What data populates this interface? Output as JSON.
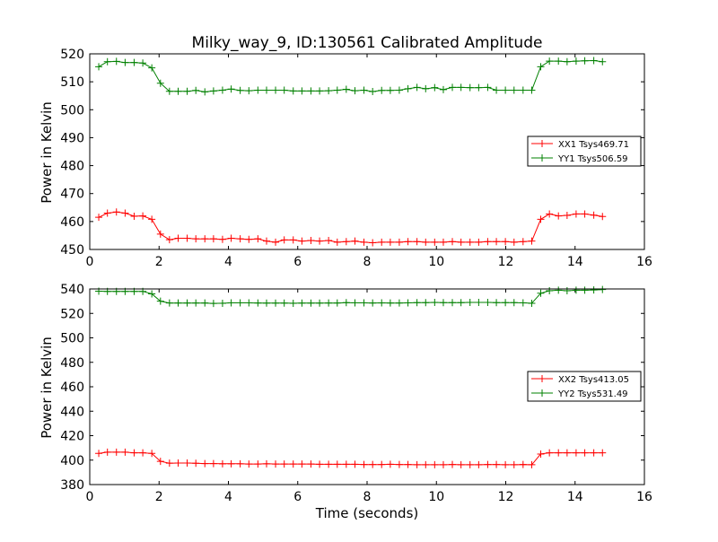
{
  "chart_data": [
    {
      "type": "line",
      "title": "Milky_way_9, ID:130561 Calibrated Amplitude",
      "xlabel": "",
      "ylabel": "Power in Kelvin",
      "xlim": [
        0,
        16
      ],
      "ylim": [
        450,
        520
      ],
      "xticks": [
        "0",
        "2",
        "4",
        "6",
        "8",
        "10",
        "12",
        "14",
        "16"
      ],
      "yticks": [
        "450",
        "460",
        "470",
        "480",
        "490",
        "500",
        "510",
        "520"
      ],
      "grid": false,
      "legend_position": "center-right",
      "x": [
        0.26,
        0.51,
        0.77,
        1.02,
        1.28,
        1.53,
        1.79,
        2.04,
        2.3,
        2.55,
        2.81,
        3.06,
        3.32,
        3.57,
        3.83,
        4.08,
        4.34,
        4.59,
        4.85,
        5.1,
        5.36,
        5.61,
        5.87,
        6.12,
        6.38,
        6.63,
        6.89,
        7.14,
        7.4,
        7.65,
        7.91,
        8.16,
        8.42,
        8.67,
        8.93,
        9.18,
        9.44,
        9.69,
        9.95,
        10.2,
        10.46,
        10.71,
        10.97,
        11.22,
        11.48,
        11.73,
        11.99,
        12.24,
        12.5,
        12.75,
        13.01,
        13.26,
        13.52,
        13.77,
        14.03,
        14.28,
        14.54,
        14.79
      ],
      "series": [
        {
          "name": "XX1 Tsys469.71",
          "color": "#ff0000",
          "values": [
            461.5,
            463.0,
            463.4,
            463.0,
            461.9,
            462.0,
            460.8,
            455.5,
            453.5,
            454.0,
            454.0,
            453.8,
            453.8,
            453.8,
            453.6,
            454.0,
            453.8,
            453.6,
            453.8,
            453.0,
            452.6,
            453.4,
            453.4,
            453.0,
            453.2,
            453.0,
            453.2,
            452.6,
            452.8,
            453.0,
            452.6,
            452.4,
            452.6,
            452.6,
            452.6,
            452.8,
            452.8,
            452.6,
            452.6,
            452.6,
            452.8,
            452.6,
            452.6,
            452.6,
            452.8,
            452.8,
            452.8,
            452.6,
            452.8,
            453.0,
            460.8,
            462.7,
            462.0,
            462.2,
            462.7,
            462.7,
            462.3,
            461.8
          ]
        },
        {
          "name": "YY1 Tsys506.59",
          "color": "#008000",
          "values": [
            515.4,
            517.2,
            517.3,
            516.9,
            516.9,
            516.7,
            515.0,
            509.5,
            506.6,
            506.6,
            506.6,
            506.9,
            506.4,
            506.7,
            507.0,
            507.4,
            506.9,
            506.8,
            507.0,
            507.0,
            507.0,
            507.0,
            506.7,
            506.7,
            506.7,
            506.7,
            506.8,
            507.0,
            507.3,
            506.8,
            507.0,
            506.5,
            506.9,
            506.9,
            507.0,
            507.5,
            508.0,
            507.5,
            507.9,
            507.2,
            508.0,
            508.0,
            507.9,
            507.9,
            508.0,
            507.0,
            507.0,
            507.0,
            507.0,
            507.0,
            515.4,
            517.4,
            517.4,
            517.2,
            517.4,
            517.5,
            517.6,
            517.2
          ]
        }
      ]
    },
    {
      "type": "line",
      "title": "",
      "xlabel": "Time (seconds)",
      "ylabel": "Power in Kelvin",
      "xlim": [
        0,
        16
      ],
      "ylim": [
        380,
        540
      ],
      "xticks": [
        "0",
        "2",
        "4",
        "6",
        "8",
        "10",
        "12",
        "14",
        "16"
      ],
      "yticks": [
        "380",
        "400",
        "420",
        "440",
        "460",
        "480",
        "500",
        "520",
        "540"
      ],
      "grid": false,
      "legend_position": "center-right",
      "x": [
        0.26,
        0.51,
        0.77,
        1.02,
        1.28,
        1.53,
        1.79,
        2.04,
        2.3,
        2.55,
        2.81,
        3.06,
        3.32,
        3.57,
        3.83,
        4.08,
        4.34,
        4.59,
        4.85,
        5.1,
        5.36,
        5.61,
        5.87,
        6.12,
        6.38,
        6.63,
        6.89,
        7.14,
        7.4,
        7.65,
        7.91,
        8.16,
        8.42,
        8.67,
        8.93,
        9.18,
        9.44,
        9.69,
        9.95,
        10.2,
        10.46,
        10.71,
        10.97,
        11.22,
        11.48,
        11.73,
        11.99,
        12.24,
        12.5,
        12.75,
        13.01,
        13.26,
        13.52,
        13.77,
        14.03,
        14.28,
        14.54,
        14.79
      ],
      "series": [
        {
          "name": "XX2 Tsys413.05",
          "color": "#ff0000",
          "values": [
            405.5,
            406.5,
            406.5,
            406.5,
            406.0,
            406.0,
            405.5,
            399.0,
            397.5,
            397.6,
            397.6,
            397.4,
            397.2,
            397.2,
            397.0,
            397.0,
            397.0,
            396.8,
            396.8,
            397.0,
            396.8,
            396.8,
            396.8,
            396.8,
            396.8,
            396.6,
            396.6,
            396.6,
            396.6,
            396.6,
            396.4,
            396.4,
            396.4,
            396.6,
            396.4,
            396.4,
            396.2,
            396.2,
            396.2,
            396.2,
            396.4,
            396.2,
            396.2,
            396.2,
            396.4,
            396.4,
            396.2,
            396.2,
            396.4,
            396.2,
            405.0,
            406.0,
            406.0,
            406.0,
            406.0,
            406.0,
            406.0,
            406.0
          ]
        },
        {
          "name": "YY2 Tsys531.49",
          "color": "#008000",
          "values": [
            538.2,
            538.0,
            538.0,
            538.0,
            538.0,
            538.0,
            536.0,
            530.0,
            528.5,
            528.5,
            528.5,
            528.5,
            528.5,
            528.2,
            528.3,
            528.6,
            528.6,
            528.6,
            528.5,
            528.4,
            528.4,
            528.4,
            528.3,
            528.4,
            528.4,
            528.4,
            528.5,
            528.5,
            528.8,
            528.6,
            528.6,
            528.5,
            528.6,
            528.5,
            528.5,
            528.6,
            528.8,
            528.8,
            529.0,
            528.8,
            528.8,
            528.8,
            529.0,
            529.0,
            529.0,
            528.8,
            528.8,
            528.8,
            528.6,
            528.3,
            536.5,
            538.5,
            539.0,
            538.5,
            539.0,
            539.0,
            539.2,
            539.5
          ]
        }
      ]
    }
  ]
}
